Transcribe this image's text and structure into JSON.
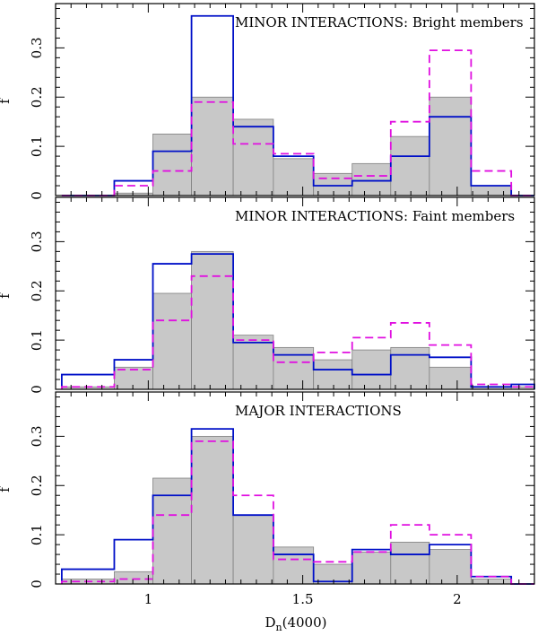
{
  "chart_data": {
    "type": "histogram",
    "xlabel": "D",
    "xlabel_sub": "n",
    "xlabel_suffix": "(4000)",
    "ylabel": "f",
    "xlim": [
      0.7,
      2.25
    ],
    "ylim": [
      0,
      0.39
    ],
    "x_ticks": [
      {
        "value": 1,
        "label": "1"
      },
      {
        "value": 1.5,
        "label": "1.5"
      },
      {
        "value": 2,
        "label": "2"
      }
    ],
    "y_ticks": [
      {
        "value": 0,
        "label": "0"
      },
      {
        "value": 0.1,
        "label": "0.1"
      },
      {
        "value": 0.2,
        "label": "0.2"
      },
      {
        "value": 0.3,
        "label": "0.3"
      }
    ],
    "bin_edges": [
      0.72,
      0.89,
      1.015,
      1.14,
      1.275,
      1.405,
      1.535,
      1.66,
      1.785,
      1.91,
      2.045,
      2.175,
      2.25
    ],
    "colors": {
      "gray_fill": "#c8c8c8",
      "gray_edge": "#808080",
      "blue": "#0010c8",
      "magenta": "#e010e0"
    },
    "panels": [
      {
        "title": "MINOR INTERACTIONS: Bright members",
        "series": [
          {
            "style": "gray",
            "values": [
              0,
              0.005,
              0.125,
              0.2,
              0.155,
              0.075,
              0.045,
              0.065,
              0.12,
              0.2,
              0.02,
              0
            ]
          },
          {
            "style": "blue",
            "values": [
              0,
              0.03,
              0.09,
              0.365,
              0.14,
              0.08,
              0.02,
              0.03,
              0.08,
              0.16,
              0.02,
              0
            ]
          },
          {
            "style": "magenta",
            "values": [
              0,
              0.02,
              0.05,
              0.19,
              0.105,
              0.085,
              0.035,
              0.04,
              0.15,
              0.295,
              0.05,
              0
            ]
          }
        ]
      },
      {
        "title": "MINOR INTERACTIONS: Faint members",
        "series": [
          {
            "style": "gray",
            "values": [
              0.005,
              0.045,
              0.195,
              0.28,
              0.11,
              0.085,
              0.06,
              0.08,
              0.085,
              0.045,
              0.005,
              0.005
            ]
          },
          {
            "style": "blue",
            "values": [
              0.03,
              0.06,
              0.255,
              0.275,
              0.095,
              0.07,
              0.04,
              0.03,
              0.07,
              0.065,
              0.005,
              0.01
            ]
          },
          {
            "style": "magenta",
            "values": [
              0.005,
              0.04,
              0.14,
              0.23,
              0.1,
              0.055,
              0.075,
              0.105,
              0.135,
              0.09,
              0.01,
              0.005
            ]
          }
        ]
      },
      {
        "title": "MAJOR INTERACTIONS",
        "series": [
          {
            "style": "gray",
            "values": [
              0.01,
              0.025,
              0.215,
              0.3,
              0.14,
              0.075,
              0.04,
              0.065,
              0.085,
              0.07,
              0.01,
              0
            ]
          },
          {
            "style": "blue",
            "values": [
              0.03,
              0.09,
              0.18,
              0.315,
              0.14,
              0.06,
              0.005,
              0.07,
              0.06,
              0.08,
              0.015,
              0
            ]
          },
          {
            "style": "magenta",
            "values": [
              0.005,
              0.01,
              0.14,
              0.29,
              0.18,
              0.05,
              0.045,
              0.065,
              0.12,
              0.1,
              0.015,
              0
            ]
          }
        ]
      }
    ]
  }
}
